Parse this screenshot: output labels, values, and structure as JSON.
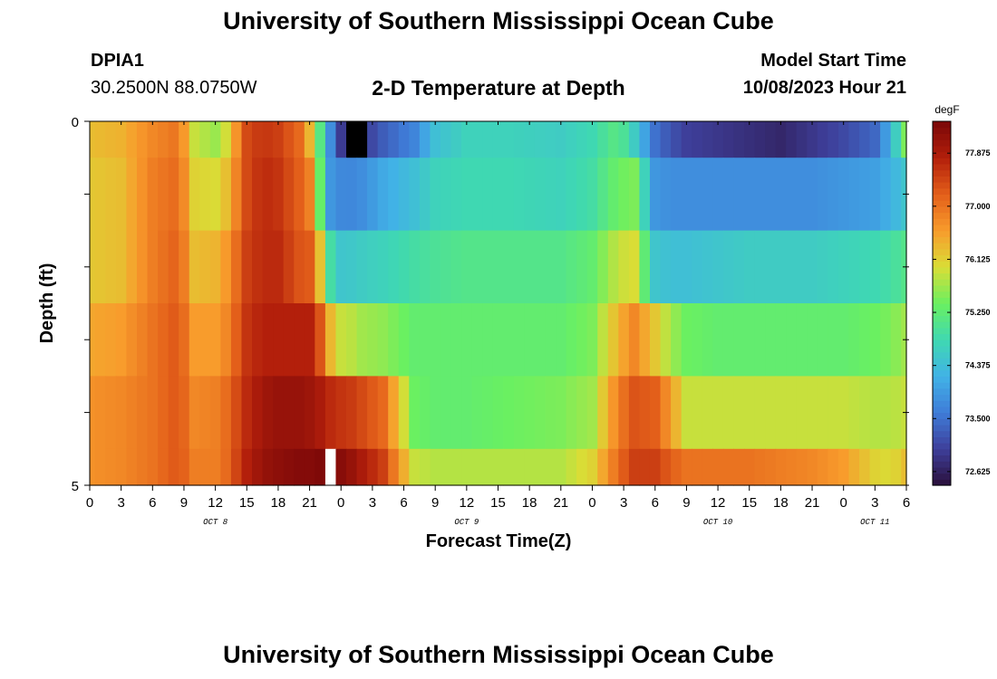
{
  "page": {
    "title_top": "University of Southern Mississippi Ocean Cube",
    "title_bottom": "University of Southern Mississippi Ocean Cube",
    "station_id": "DPIA1",
    "coordinates": "30.2500N  88.0750W",
    "chart_title": "2-D Temperature at Depth",
    "model_start_label": "Model Start Time",
    "model_start_value": "10/08/2023 Hour 21"
  },
  "colors": {
    "no_data": "#ffffff",
    "ramp": [
      "#2a0f3a",
      "#3e3f9a",
      "#3f7cd8",
      "#41b2e6",
      "#3fd8b2",
      "#6af061",
      "#d9dd36",
      "#f89c2c",
      "#e35f1a",
      "#b31f0b",
      "#7a0708"
    ]
  },
  "chart_data": {
    "type": "heatmap",
    "title": "2-D Temperature at Depth",
    "xlabel": "Forecast Time(Z)",
    "ylabel": "Depth (ft)",
    "x_unit": "hours since 2023-10-08 00Z",
    "x_range": [
      0,
      78
    ],
    "x_ticks": [
      0,
      3,
      6,
      9,
      12,
      15,
      18,
      21,
      24,
      27,
      30,
      33,
      36,
      39,
      42,
      45,
      48,
      51,
      54,
      57,
      60,
      63,
      66,
      69,
      72,
      75,
      78
    ],
    "x_tick_labels": [
      "0",
      "3",
      "6",
      "9",
      "12",
      "15",
      "18",
      "21",
      "0",
      "3",
      "6",
      "9",
      "12",
      "15",
      "18",
      "21",
      "0",
      "3",
      "6",
      "9",
      "12",
      "15",
      "18",
      "21",
      "0",
      "3",
      "6"
    ],
    "day_labels": [
      {
        "text": "OCT 8",
        "hour": 12
      },
      {
        "text": "OCT 9",
        "hour": 36
      },
      {
        "text": "OCT 10",
        "hour": 60
      },
      {
        "text": "OCT 11",
        "hour": 75
      }
    ],
    "y_range": [
      0,
      5
    ],
    "y_ticks": [
      0,
      1,
      2,
      3,
      4,
      5
    ],
    "y_tick_labels": [
      "0",
      "",
      "",
      "",
      "",
      "5"
    ],
    "depth_bin_edges": [
      0,
      0.5,
      1.5,
      2.5,
      3.5,
      4.5,
      5
    ],
    "colorbar": {
      "unit": "degF",
      "min": 72.4,
      "max": 78.4,
      "tick_values": [
        72.625,
        73.5,
        74.375,
        75.25,
        76.125,
        77.0,
        77.875
      ],
      "tick_labels": [
        "72.625",
        "73.500",
        "74.375",
        "75.250",
        "76.125",
        "77.000",
        "77.875"
      ]
    },
    "keyframes": {
      "hours": [
        0,
        3,
        6,
        8.5,
        10,
        12.5,
        15,
        16.5,
        18,
        20,
        21.5,
        22.5,
        23.5,
        24.5,
        26,
        28,
        31,
        33,
        36,
        40,
        45,
        48,
        50.5,
        52,
        54,
        55.5,
        57,
        60,
        63,
        66,
        69,
        72,
        75,
        76.5,
        78
      ],
      "rows": [
        [
          76.3,
          76.4,
          76.8,
          77.0,
          75.9,
          75.6,
          77.4,
          77.6,
          77.5,
          77.1,
          76.0,
          74.3,
          73.3,
          72.6,
          72.9,
          73.3,
          73.7,
          74.4,
          74.7,
          74.7,
          74.6,
          74.8,
          75.2,
          74.6,
          73.5,
          73.2,
          73.0,
          72.9,
          72.8,
          72.7,
          72.9,
          73.1,
          73.4,
          74.2,
          75.5
        ],
        [
          76.2,
          76.3,
          76.9,
          77.1,
          76.1,
          76.0,
          77.4,
          77.7,
          77.6,
          77.2,
          76.7,
          74.0,
          73.8,
          73.7,
          73.8,
          74.1,
          74.4,
          74.7,
          74.8,
          74.8,
          74.7,
          74.9,
          75.4,
          75.5,
          73.9,
          73.8,
          73.8,
          73.8,
          73.8,
          73.8,
          73.8,
          73.9,
          74.0,
          74.2,
          74.5
        ],
        [
          76.2,
          76.3,
          76.9,
          77.2,
          76.3,
          76.4,
          77.5,
          77.7,
          77.7,
          77.3,
          77.2,
          75.3,
          74.5,
          74.5,
          74.6,
          74.7,
          74.9,
          75.0,
          75.1,
          75.1,
          75.1,
          75.3,
          75.9,
          76.0,
          74.5,
          74.4,
          74.4,
          74.5,
          74.6,
          74.6,
          74.6,
          74.7,
          74.8,
          74.9,
          75.1
        ],
        [
          76.5,
          76.6,
          77.0,
          77.3,
          76.6,
          76.6,
          77.6,
          77.8,
          77.8,
          77.8,
          77.8,
          76.8,
          75.9,
          75.9,
          75.7,
          75.6,
          75.3,
          75.3,
          75.3,
          75.3,
          75.3,
          75.5,
          76.4,
          76.8,
          76.2,
          75.7,
          75.4,
          75.3,
          75.3,
          75.3,
          75.3,
          75.3,
          75.4,
          75.5,
          75.7
        ],
        [
          76.7,
          76.8,
          77.0,
          77.3,
          76.8,
          76.9,
          77.7,
          78.0,
          78.1,
          78.1,
          78.0,
          77.8,
          77.6,
          77.6,
          77.4,
          77.1,
          75.4,
          75.3,
          75.3,
          75.4,
          75.5,
          75.7,
          76.9,
          77.3,
          77.2,
          76.6,
          75.9,
          75.9,
          75.9,
          75.9,
          75.9,
          75.9,
          75.8,
          75.8,
          75.9
        ],
        [
          76.7,
          76.8,
          77.0,
          77.3,
          76.9,
          76.9,
          77.8,
          78.1,
          78.2,
          78.3,
          78.3,
          78.4,
          78.3,
          78.2,
          77.9,
          77.5,
          75.9,
          75.8,
          75.8,
          75.8,
          75.8,
          76.1,
          77.1,
          77.5,
          77.5,
          77.2,
          77.0,
          77.0,
          77.0,
          76.9,
          76.8,
          76.6,
          76.1,
          76.0,
          76.3
        ]
      ]
    },
    "no_data_hours": [
      {
        "row": 0,
        "hour": 25.5,
        "color": "#000000"
      },
      {
        "row": 5,
        "hour": 23.0,
        "color": "#ffffff"
      }
    ]
  }
}
